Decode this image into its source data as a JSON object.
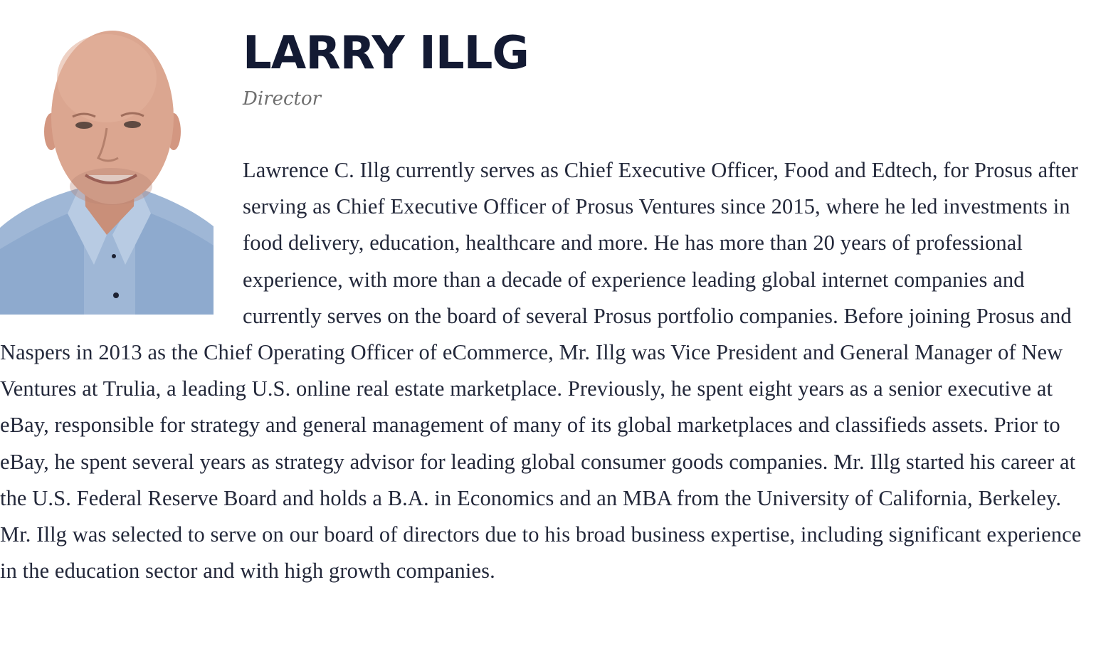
{
  "person": {
    "name": "LARRY ILLG",
    "role": "Director",
    "bio": "Lawrence C. Illg currently serves as Chief Executive Officer, Food and Edtech, for Prosus after serving as Chief Executive Officer of Prosus Ventures since 2015, where he led investments in food delivery, education, healthcare and more. He has more than 20 years of professional experience, with more than a decade of experience leading global internet companies and currently serves on the board of several Prosus portfolio companies. Before joining Prosus and Naspers in 2013 as the Chief Operating Officer of eCommerce, Mr. Illg was Vice President and General Manager of New Ventures at Trulia, a leading U.S. online real estate marketplace. Previously, he spent eight years as a senior executive at eBay, responsible for strategy and general management of many of its global marketplaces and classifieds assets. Prior to eBay, he spent several years as strategy advisor for leading global consumer goods companies. Mr. Illg started his career at the U.S. Federal Reserve Board and holds a B.A. in Economics and an MBA from the University of California, Berkeley. Mr. Illg was selected to serve on our board of directors due to his broad business expertise, including significant experience in the education sector and with high growth companies."
  },
  "colors": {
    "name": "#131a33",
    "role": "#6e6e6e",
    "body": "#23283a",
    "shirt": "#9fb7d6",
    "skin": "#d9a08a"
  }
}
